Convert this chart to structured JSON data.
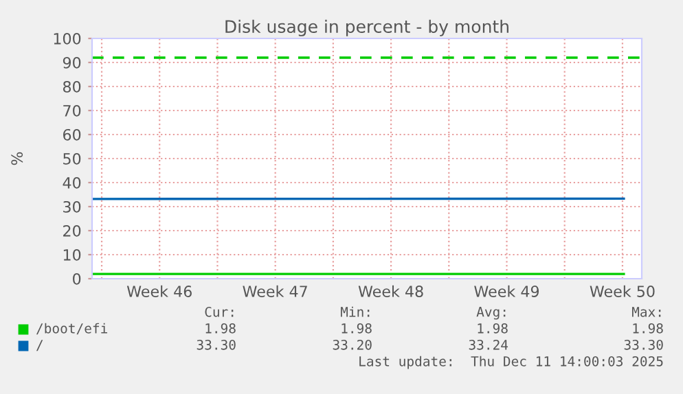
{
  "chart_data": {
    "type": "line",
    "title": "Disk usage in percent - by month",
    "ylabel": "%",
    "x": [
      "2025-11-09T10:00",
      "2025-12-11T14:00"
    ],
    "series": [
      {
        "name": "/boot/efi",
        "color": "#00cc00",
        "values": [
          1.98,
          1.98
        ]
      },
      {
        "name": "/",
        "color": "#0066b3",
        "values": [
          33.2,
          33.3
        ]
      }
    ],
    "xlim": [
      "2025-11-09T10:00",
      "2025-12-12T16:00"
    ],
    "xticks": [
      {
        "value": "2025-11-10",
        "label": null
      },
      {
        "value": "2025-11-13T12:00",
        "label": "Week 46"
      },
      {
        "value": "2025-11-17",
        "label": null
      },
      {
        "value": "2025-11-20T12:00",
        "label": "Week 47"
      },
      {
        "value": "2025-11-24",
        "label": null
      },
      {
        "value": "2025-11-27T12:00",
        "label": "Week 48"
      },
      {
        "value": "2025-12-01",
        "label": null
      },
      {
        "value": "2025-12-04T12:00",
        "label": "Week 49"
      },
      {
        "value": "2025-12-08",
        "label": null
      },
      {
        "value": "2025-12-11T12:00",
        "label": "Week 50"
      }
    ],
    "ylim": [
      0,
      100
    ],
    "yticks": [
      0,
      10,
      20,
      30,
      40,
      50,
      60,
      70,
      80,
      90,
      100
    ],
    "ref_lines": [
      {
        "axis": "y",
        "value": 92,
        "color": "#00cc00",
        "line_style": "dashed"
      }
    ],
    "grid": true,
    "legend": "bottom",
    "annotations": [
      "Cur:",
      "Min:",
      "Avg:",
      "Max:",
      "1.98",
      "1.98",
      "1.98",
      "1.98",
      "33.30",
      "33.20",
      "33.24",
      "33.30",
      "Last update:  Thu Dec 11 14:00:03 2025"
    ]
  }
}
